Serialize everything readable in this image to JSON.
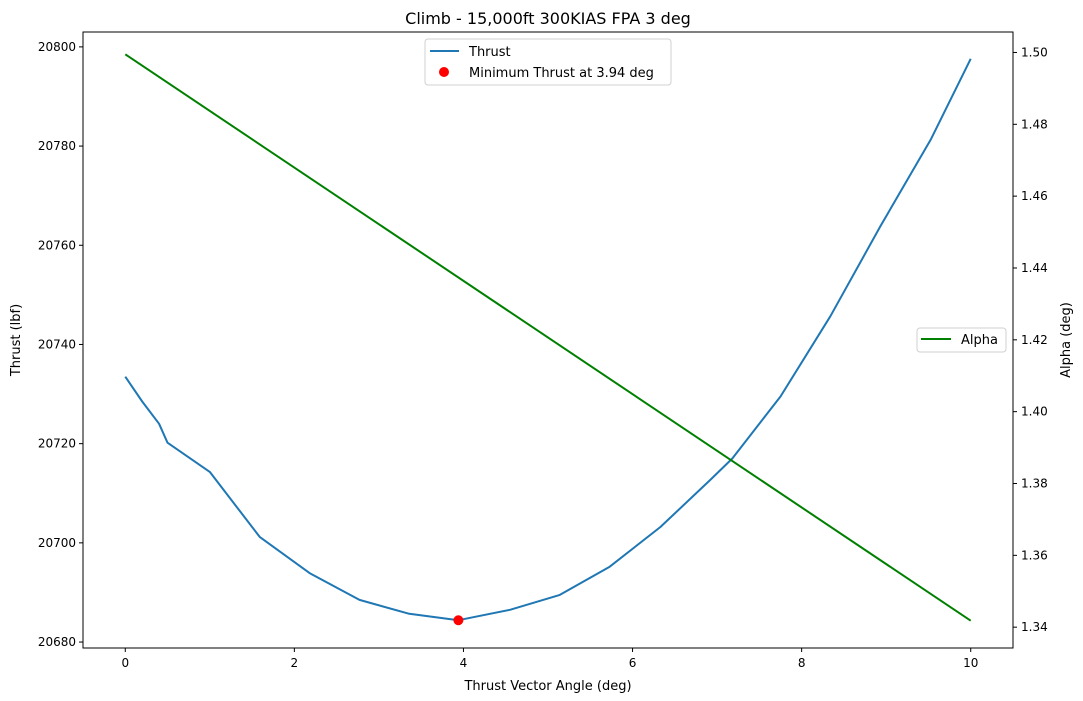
{
  "chart_data": {
    "type": "line",
    "title": "Climb - 15,000ft 300KIAS FPA 3 deg",
    "xlabel": "Thrust Vector Angle (deg)",
    "ylabel": "Thrust (lbf)",
    "y2label": "Alpha (deg)",
    "xlim": [
      -0.5,
      10.5
    ],
    "ylim": [
      20678.8,
      20803
    ],
    "y2lim": [
      1.3342,
      1.5057
    ],
    "xticks": [
      0,
      2,
      4,
      6,
      8,
      10
    ],
    "yticks": [
      20680,
      20700,
      20720,
      20740,
      20760,
      20780,
      20800
    ],
    "y2ticks": [
      1.34,
      1.36,
      1.38,
      1.4,
      1.42,
      1.44,
      1.46,
      1.48,
      1.5
    ],
    "y2tick_labels": [
      "1.34",
      "1.36",
      "1.38",
      "1.40",
      "1.42",
      "1.44",
      "1.46",
      "1.48",
      "1.50"
    ],
    "grid": false,
    "series": [
      {
        "name": "Thrust",
        "axis": "left",
        "color": "#1f77b4",
        "x": [
          0,
          0.2,
          0.4,
          0.5,
          1.0,
          1.59,
          2.18,
          2.77,
          3.36,
          3.94,
          4.55,
          5.14,
          5.73,
          6.33,
          6.92,
          7.18,
          7.75,
          8.34,
          8.93,
          9.53,
          10.0
        ],
        "values": [
          20733.5,
          20728.5,
          20724.0,
          20720.2,
          20714.3,
          20701.2,
          20693.9,
          20688.5,
          20685.7,
          20684.4,
          20686.5,
          20689.5,
          20695.2,
          20703.2,
          20712.7,
          20717.0,
          20729.5,
          20745.7,
          20763.8,
          20781.4,
          20797.6
        ]
      },
      {
        "name": "Alpha",
        "axis": "right",
        "color": "#008000",
        "x": [
          0,
          10
        ],
        "values": [
          1.4995,
          1.3418
        ]
      }
    ],
    "markers": [
      {
        "name": "Minimum Thrust at 3.94 deg",
        "x": 3.94,
        "y": 20684.4,
        "color": "#ff0000"
      }
    ],
    "legends": [
      {
        "position": "upper center",
        "entries": [
          "Thrust",
          "Minimum Thrust at 3.94 deg"
        ]
      },
      {
        "position": "center right",
        "entries": [
          "Alpha"
        ]
      }
    ]
  }
}
